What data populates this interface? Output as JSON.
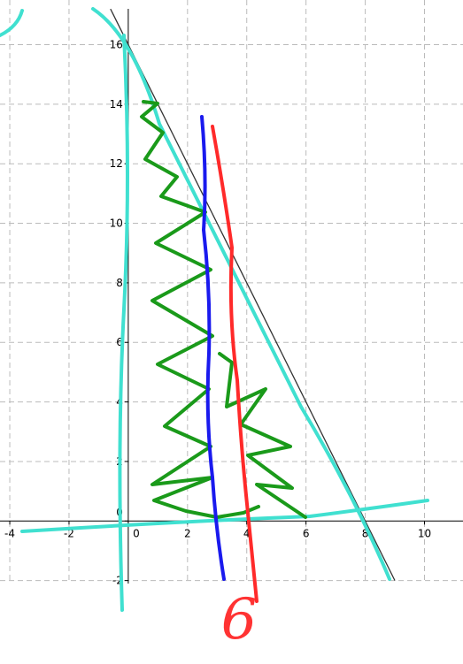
{
  "chart_data": {
    "type": "line",
    "series": [
      {
        "color": "#333333",
        "x": [
          -0.6,
          9
        ],
        "values": [
          17.2,
          -2
        ]
      }
    ],
    "xlim": [
      -4.33,
      11.3
    ],
    "ylim": [
      -2.1,
      17.5
    ],
    "xticks": [
      -4,
      -2,
      0,
      2,
      4,
      6,
      8,
      10
    ],
    "yticks": [
      -2,
      0,
      2,
      4,
      6,
      8,
      10,
      12,
      14,
      16
    ],
    "grid": true,
    "annotation": "6",
    "annotation_color": "#ff3333"
  }
}
